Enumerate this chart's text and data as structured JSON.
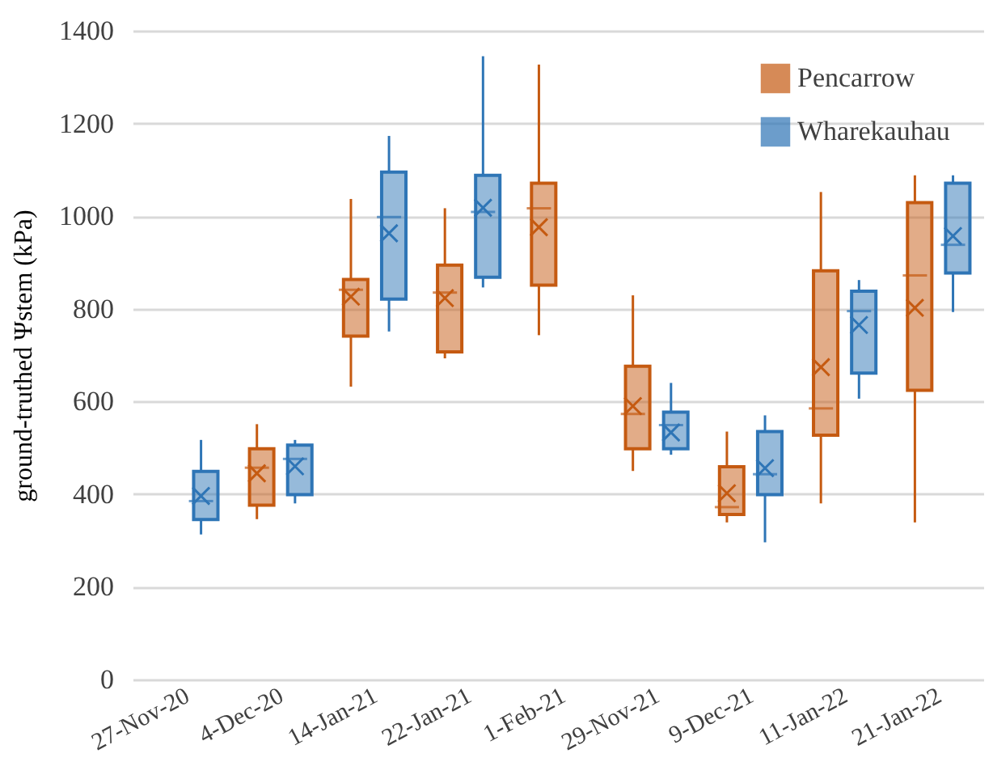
{
  "chart_data": {
    "type": "box",
    "ylabel": "ground-truthed Ψstem (kPa)",
    "categories": [
      "27-Nov-20",
      "4-Dec-20",
      "14-Jan-21",
      "22-Jan-21",
      "1-Feb-21",
      "29-Nov-21",
      "9-Dec-21",
      "11-Jan-22",
      "21-Jan-22"
    ],
    "ylim": [
      0,
      1400
    ],
    "yticks": [
      0,
      200,
      400,
      600,
      800,
      1000,
      1200,
      1400
    ],
    "grid": "y",
    "legend": "top right",
    "series": [
      {
        "name": "Pencarrow",
        "color": "#c55a11",
        "boxes": [
          null,
          {
            "low": 346,
            "q1": 376,
            "median": 457,
            "q3": 498,
            "high": 551,
            "mean": 445
          },
          {
            "low": 632,
            "q1": 741,
            "median": 841,
            "q3": 863,
            "high": 1037,
            "mean": 826
          },
          {
            "low": 693,
            "q1": 707,
            "median": 835,
            "q3": 894,
            "high": 1017,
            "mean": 823
          },
          {
            "low": 743,
            "q1": 851,
            "median": 1017,
            "q3": 1071,
            "high": 1327,
            "mean": 976
          },
          {
            "low": 450,
            "q1": 498,
            "median": 573,
            "q3": 676,
            "high": 829,
            "mean": 590
          },
          {
            "low": 339,
            "q1": 356,
            "median": 372,
            "q3": 459,
            "high": 535,
            "mean": 402
          },
          {
            "low": 380,
            "q1": 527,
            "median": 585,
            "q3": 882,
            "high": 1052,
            "mean": 674
          },
          {
            "low": 339,
            "q1": 624,
            "median": 872,
            "q3": 1029,
            "high": 1088,
            "mean": 802
          }
        ]
      },
      {
        "name": "Wharekauhau",
        "color": "#2e75b6",
        "boxes": [
          {
            "low": 313,
            "q1": 345,
            "median": 385,
            "q3": 449,
            "high": 517,
            "mean": 396
          },
          {
            "low": 380,
            "q1": 399,
            "median": 476,
            "q3": 506,
            "high": 517,
            "mean": 460
          },
          {
            "low": 751,
            "q1": 821,
            "median": 998,
            "q3": 1095,
            "high": 1173,
            "mean": 963
          },
          {
            "low": 846,
            "q1": 868,
            "median": 1009,
            "q3": 1088,
            "high": 1345,
            "mean": 1018
          },
          null,
          {
            "low": 485,
            "q1": 498,
            "median": 549,
            "q3": 577,
            "high": 640,
            "mean": 533
          },
          {
            "low": 296,
            "q1": 399,
            "median": 443,
            "q3": 535,
            "high": 570,
            "mean": 456
          },
          {
            "low": 606,
            "q1": 661,
            "median": 795,
            "q3": 838,
            "high": 862,
            "mean": 765
          },
          {
            "low": 793,
            "q1": 877,
            "median": 938,
            "q3": 1071,
            "high": 1088,
            "mean": 957
          }
        ]
      }
    ]
  }
}
